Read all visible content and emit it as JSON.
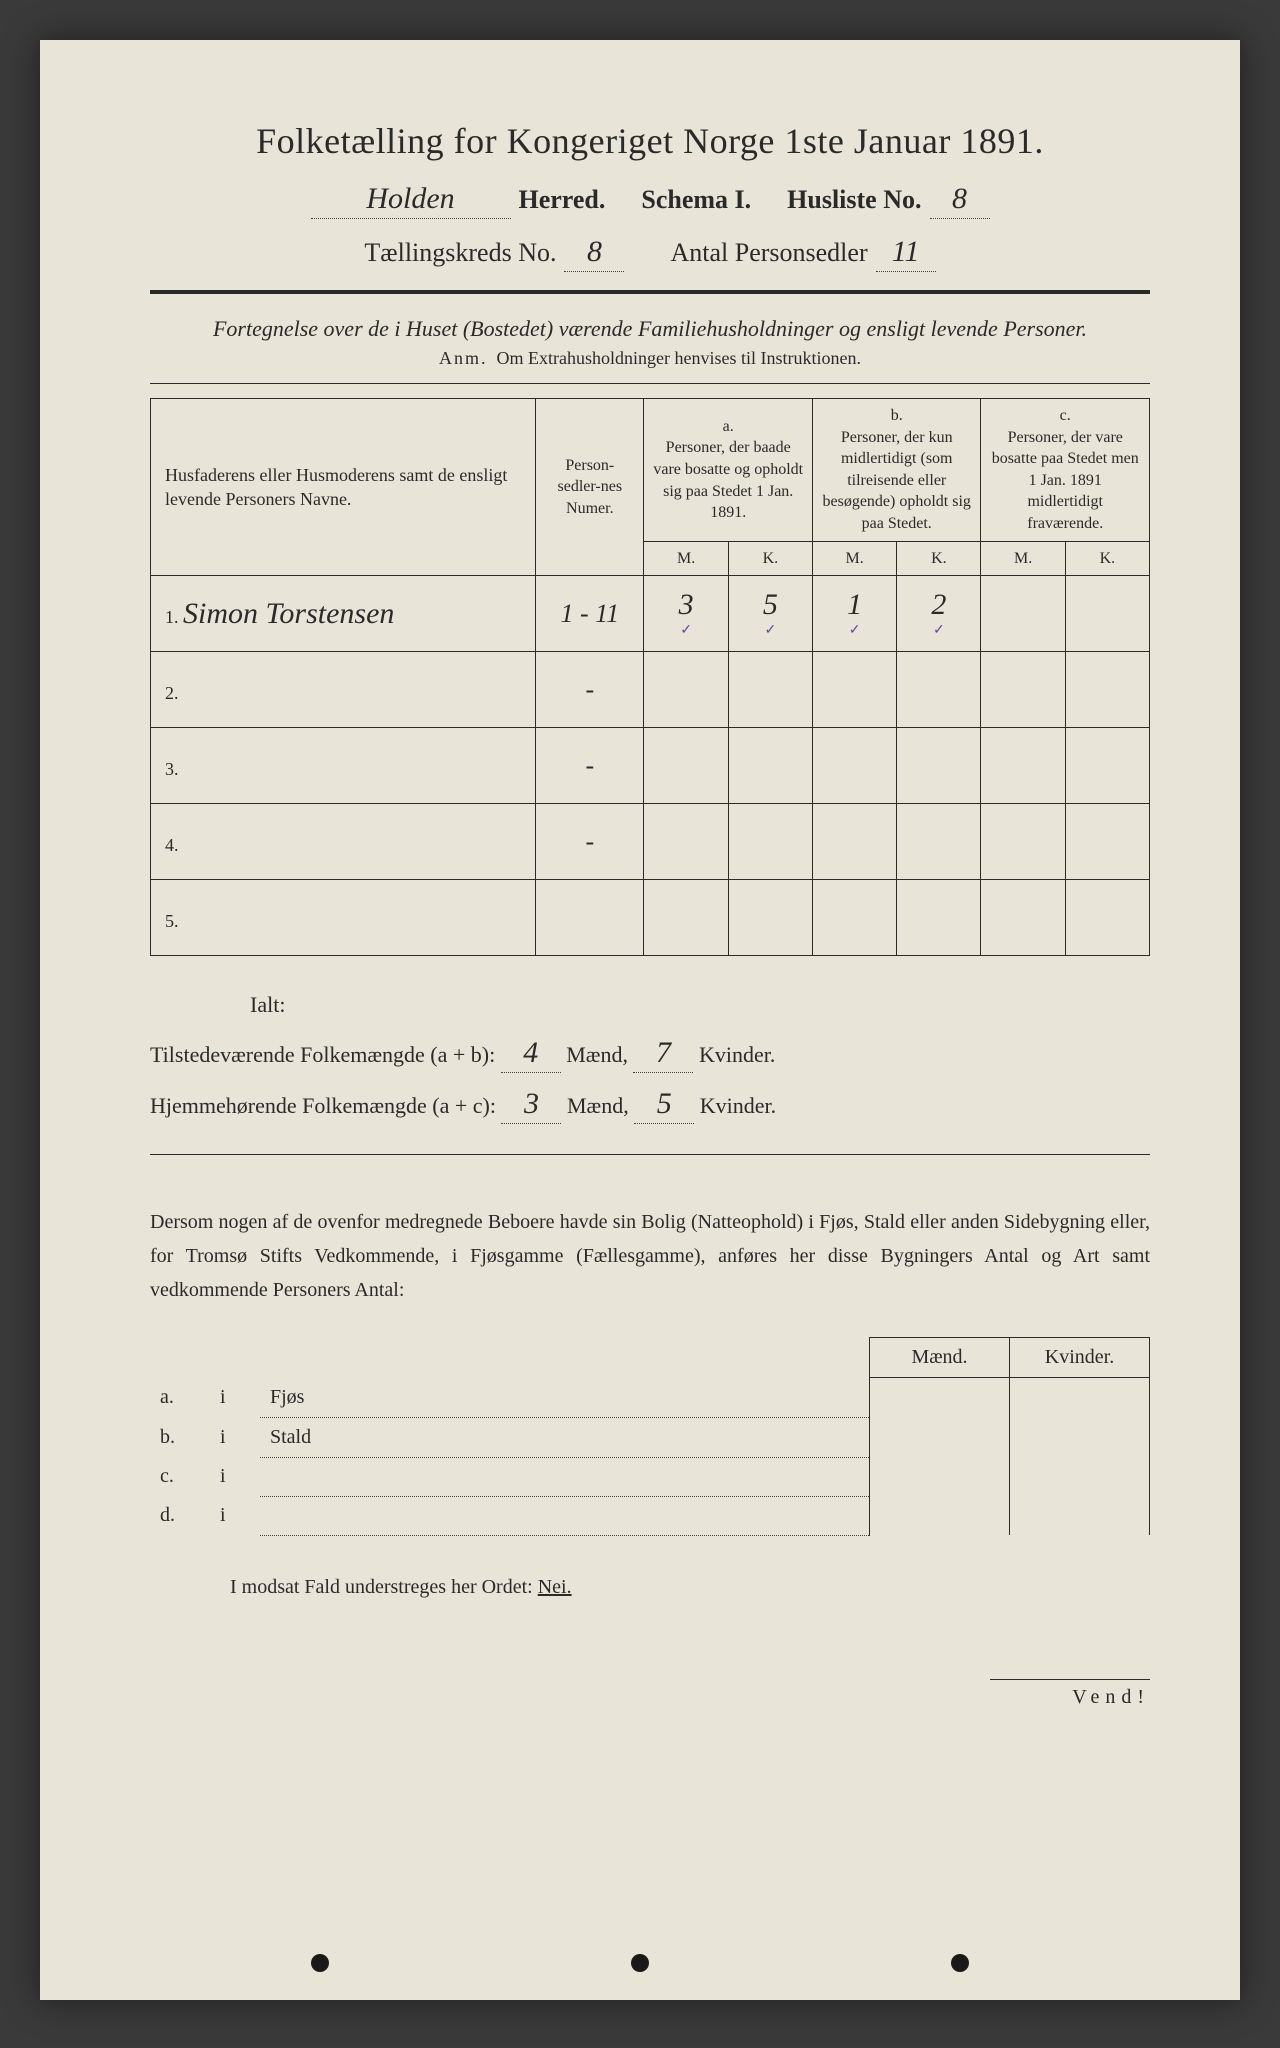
{
  "header": {
    "title": "Folketælling for Kongeriget Norge 1ste Januar 1891.",
    "herred_value": "Holden",
    "herred_label": "Herred.",
    "schema_label": "Schema I.",
    "husliste_label": "Husliste No.",
    "husliste_value": "8",
    "kreds_label": "Tællingskreds No.",
    "kreds_value": "8",
    "antal_label": "Antal Personsedler",
    "antal_value": "11"
  },
  "subtitle": "Fortegnelse over de i Huset (Bostedet) værende Familiehusholdninger og ensligt levende Personer.",
  "note_prefix": "Anm.",
  "note_text": "Om Extrahusholdninger henvises til Instruktionen.",
  "table": {
    "col_names": "Husfaderens eller Husmoderens samt de ensligt levende Personers Navne.",
    "col_numer": "Person-sedler-nes Numer.",
    "group_a_letter": "a.",
    "group_a": "Personer, der baade vare bosatte og opholdt sig paa Stedet 1 Jan. 1891.",
    "group_b_letter": "b.",
    "group_b": "Personer, der kun midlertidigt (som tilreisende eller besøgende) opholdt sig paa Stedet.",
    "group_c_letter": "c.",
    "group_c": "Personer, der vare bosatte paa Stedet men 1 Jan. 1891 midlertidigt fraværende.",
    "M": "M.",
    "K": "K.",
    "rows": [
      {
        "n": "1.",
        "name": "Simon Torstensen",
        "numer": "1 - 11",
        "aM": "3",
        "aK": "5",
        "bM": "1",
        "bK": "2",
        "cM": "",
        "cK": ""
      },
      {
        "n": "2.",
        "name": "",
        "numer": "-",
        "aM": "",
        "aK": "",
        "bM": "",
        "bK": "",
        "cM": "",
        "cK": ""
      },
      {
        "n": "3.",
        "name": "",
        "numer": "-",
        "aM": "",
        "aK": "",
        "bM": "",
        "bK": "",
        "cM": "",
        "cK": ""
      },
      {
        "n": "4.",
        "name": "",
        "numer": "-",
        "aM": "",
        "aK": "",
        "bM": "",
        "bK": "",
        "cM": "",
        "cK": ""
      },
      {
        "n": "5.",
        "name": "",
        "numer": "",
        "aM": "",
        "aK": "",
        "bM": "",
        "bK": "",
        "cM": "",
        "cK": ""
      }
    ]
  },
  "totals": {
    "ialt": "Ialt:",
    "line1_label": "Tilstedeværende Folkemængde (a + b):",
    "line1_m": "4",
    "line1_k": "7",
    "line2_label": "Hjemmehørende Folkemængde (a + c):",
    "line2_m": "3",
    "line2_k": "5",
    "maend": "Mænd,",
    "kvinder": "Kvinder."
  },
  "para": "Dersom nogen af de ovenfor medregnede Beboere havde sin Bolig (Natteophold) i Fjøs, Stald eller anden Sidebygning eller, for Tromsø Stifts Vedkommende, i Fjøsgamme (Fællesgamme), anføres her disse Bygningers Antal og Art samt vedkommende Personers Antal:",
  "bottom": {
    "maend": "Mænd.",
    "kvinder": "Kvinder.",
    "rows": [
      {
        "k": "a.",
        "i": "i",
        "label": "Fjøs"
      },
      {
        "k": "b.",
        "i": "i",
        "label": "Stald"
      },
      {
        "k": "c.",
        "i": "i",
        "label": ""
      },
      {
        "k": "d.",
        "i": "i",
        "label": ""
      }
    ]
  },
  "modsat": "I modsat Fald understreges her Ordet:",
  "nei": "Nei.",
  "vend": "Vend!"
}
